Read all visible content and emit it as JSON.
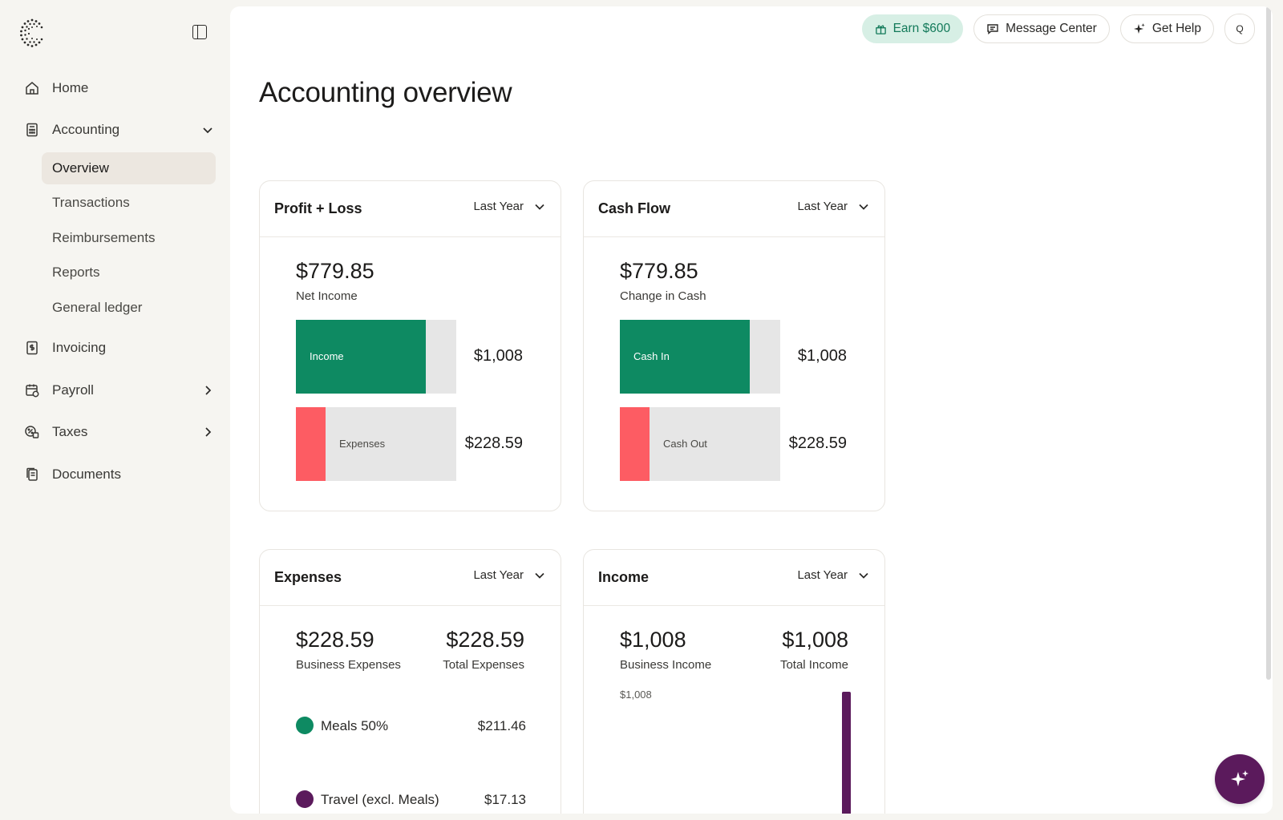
{
  "sidebar": {
    "items": [
      {
        "label": "Home",
        "icon": "home-icon"
      },
      {
        "label": "Accounting",
        "icon": "calculator-icon"
      },
      {
        "label": "Invoicing",
        "icon": "invoice-icon"
      },
      {
        "label": "Payroll",
        "icon": "payroll-icon"
      },
      {
        "label": "Taxes",
        "icon": "taxes-icon"
      },
      {
        "label": "Documents",
        "icon": "documents-icon"
      }
    ],
    "accounting_sub": [
      {
        "label": "Overview",
        "active": true
      },
      {
        "label": "Transactions"
      },
      {
        "label": "Reimbursements"
      },
      {
        "label": "Reports"
      },
      {
        "label": "General ledger"
      }
    ]
  },
  "topbar": {
    "earn": "Earn $600",
    "message_center": "Message Center",
    "get_help": "Get Help",
    "avatar": "Q"
  },
  "page": {
    "title": "Accounting overview"
  },
  "cards": {
    "profit_loss": {
      "title": "Profit + Loss",
      "period": "Last Year",
      "amount": "$779.85",
      "amount_label": "Net Income",
      "bars": [
        {
          "label": "Income",
          "amount": "$1,008",
          "fill": 0.81
        },
        {
          "label": "Expenses",
          "amount": "$228.59",
          "fill": 0.185
        }
      ]
    },
    "cash_flow": {
      "title": "Cash Flow",
      "period": "Last Year",
      "amount": "$779.85",
      "amount_label": "Change in Cash",
      "bars": [
        {
          "label": "Cash In",
          "amount": "$1,008",
          "fill": 0.81
        },
        {
          "label": "Cash Out",
          "amount": "$228.59",
          "fill": 0.185
        }
      ]
    },
    "expenses": {
      "title": "Expenses",
      "period": "Last Year",
      "left_amount": "$228.59",
      "left_label": "Business Expenses",
      "right_amount": "$228.59",
      "right_label": "Total Expenses",
      "items": [
        {
          "label": "Meals 50%",
          "amount": "$211.46",
          "color": "#0e8a62"
        },
        {
          "label": "Travel (excl. Meals)",
          "amount": "$17.13",
          "color": "#5b1a5c"
        }
      ]
    },
    "income": {
      "title": "Income",
      "period": "Last Year",
      "left_amount": "$1,008",
      "left_label": "Business Income",
      "right_amount": "$1,008",
      "right_label": "Total Income",
      "chart_label": "$1,008"
    }
  },
  "colors": {
    "green": "#0e8a62",
    "red": "#fd5c63",
    "purple": "#5b1a5c"
  }
}
